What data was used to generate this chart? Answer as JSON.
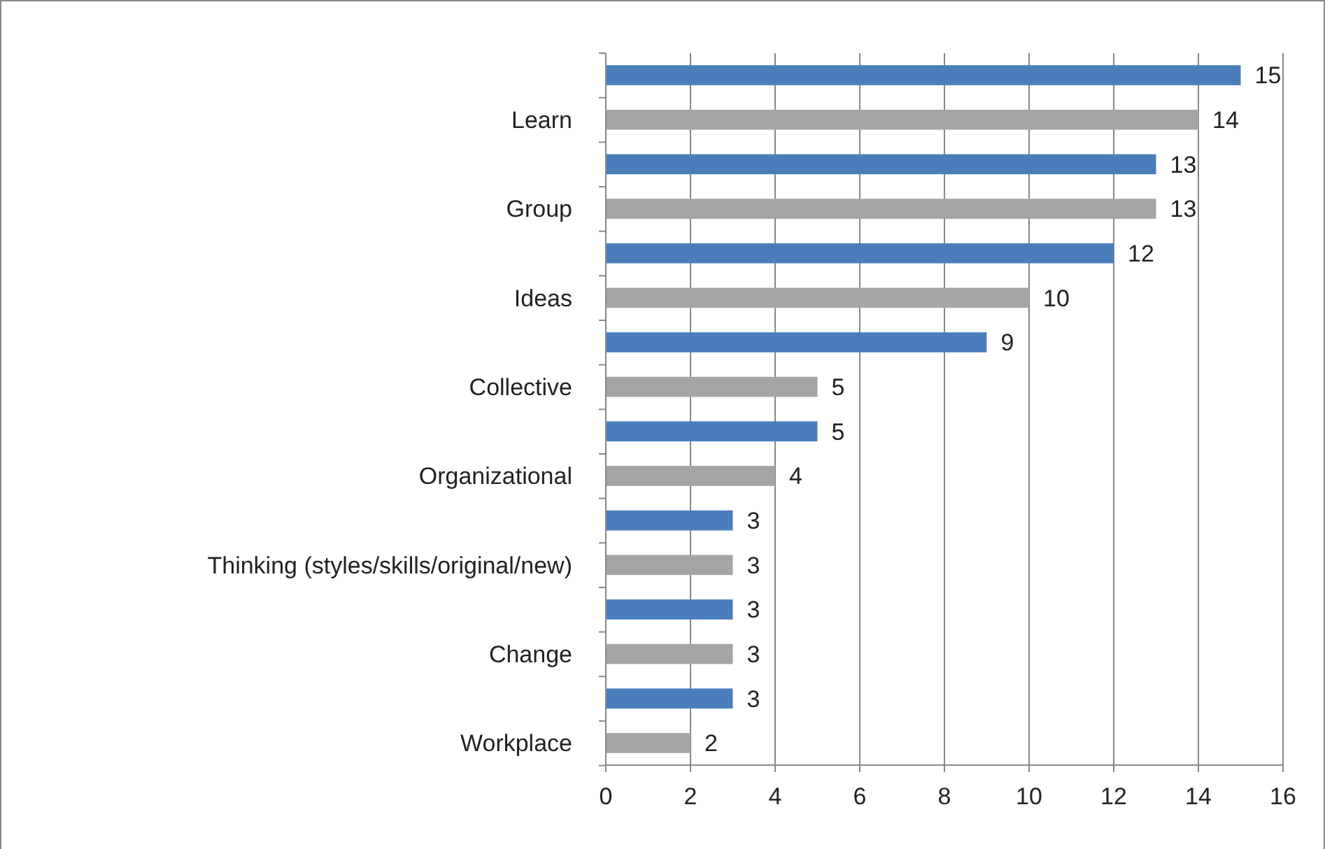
{
  "chart_data": {
    "type": "bar",
    "orientation": "horizontal",
    "categories": [
      null,
      "Learn",
      null,
      "Group",
      null,
      "Ideas",
      null,
      "Collective",
      null,
      "Organizational",
      null,
      "Thinking (styles/skills/original/new)",
      null,
      "Change",
      null,
      "Workplace"
    ],
    "values": [
      15,
      14,
      13,
      13,
      12,
      10,
      9,
      5,
      5,
      4,
      3,
      3,
      3,
      3,
      3,
      2
    ],
    "colors": [
      "#4a7ebb",
      "#a5a5a5",
      "#4a7ebb",
      "#a5a5a5",
      "#4a7ebb",
      "#a5a5a5",
      "#4a7ebb",
      "#a5a5a5",
      "#4a7ebb",
      "#a5a5a5",
      "#4a7ebb",
      "#a5a5a5",
      "#4a7ebb",
      "#a5a5a5",
      "#4a7ebb",
      "#a5a5a5"
    ],
    "xlim": [
      0,
      16
    ],
    "xticks": [
      0,
      2,
      4,
      6,
      8,
      10,
      12,
      14,
      16
    ],
    "grid": "x",
    "data_labels": true
  }
}
